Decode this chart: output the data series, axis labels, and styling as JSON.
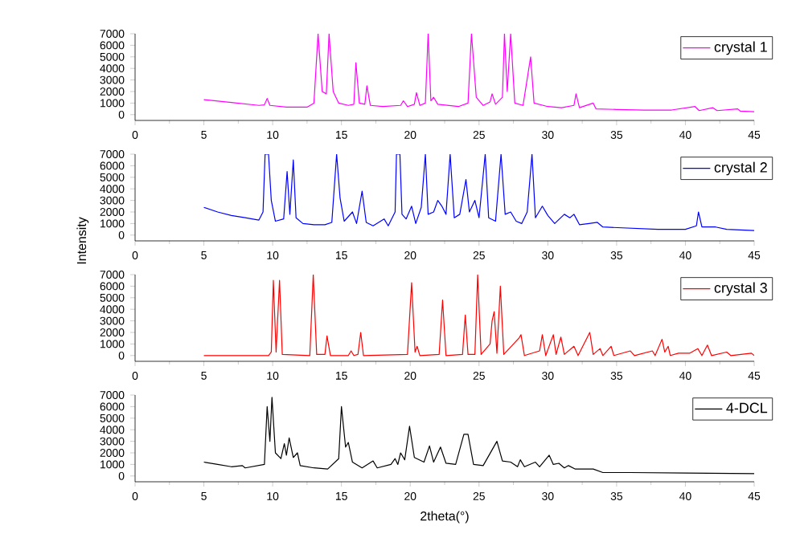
{
  "chart_data": [
    {
      "type": "line",
      "xlim": [
        0,
        45
      ],
      "xticks": [
        0,
        5,
        10,
        15,
        20,
        25,
        30,
        35,
        40,
        45
      ],
      "ylim": [
        -500,
        7000
      ],
      "yticks": [
        0,
        1000,
        2000,
        3000,
        4000,
        5000,
        6000,
        7000
      ],
      "legend": "top right",
      "x": [
        5,
        7,
        9,
        9.4,
        9.6,
        9.8,
        11,
        12.5,
        13,
        13.3,
        13.6,
        13.9,
        14.1,
        14.4,
        14.8,
        15.5,
        15.9,
        16.05,
        16.3,
        16.7,
        16.85,
        17.1,
        18,
        19.3,
        19.5,
        19.8,
        20.3,
        20.45,
        20.7,
        21.1,
        21.3,
        21.5,
        21.7,
        22,
        23.5,
        24.2,
        24.45,
        24.8,
        25.3,
        25.8,
        25.95,
        26.2,
        26.7,
        26.85,
        27.05,
        27.3,
        27.6,
        28.2,
        28.75,
        29,
        30,
        31,
        31.9,
        32.05,
        32.3,
        33.3,
        33.5,
        35,
        37,
        39,
        40.7,
        41,
        42,
        42.3,
        43.8,
        44,
        45
      ],
      "series": [
        {
          "name": "crystal 1",
          "color": "#ff00ff",
          "values": [
            1300,
            1050,
            800,
            850,
            1400,
            800,
            650,
            650,
            1000,
            7000,
            2000,
            1800,
            7000,
            2000,
            1000,
            800,
            900,
            4500,
            1000,
            900,
            2500,
            800,
            700,
            800,
            1200,
            700,
            900,
            1900,
            800,
            1000,
            7000,
            1200,
            1500,
            900,
            700,
            1000,
            7000,
            1500,
            800,
            1100,
            1800,
            900,
            1500,
            7000,
            2000,
            7000,
            1000,
            800,
            5000,
            1000,
            700,
            600,
            800,
            1800,
            600,
            1000,
            500,
            450,
            400,
            400,
            700,
            350,
            600,
            350,
            500,
            300,
            250
          ]
        }
      ]
    },
    {
      "type": "line",
      "xlim": [
        0,
        45
      ],
      "xticks": [
        0,
        5,
        10,
        15,
        20,
        25,
        30,
        35,
        40,
        45
      ],
      "ylim": [
        -500,
        7000
      ],
      "yticks": [
        0,
        1000,
        2000,
        3000,
        4000,
        5000,
        6000,
        7000
      ],
      "legend": "top right",
      "ylabel": "Intensity",
      "x": [
        5,
        6,
        7,
        8,
        9,
        9.3,
        9.45,
        9.7,
        9.9,
        10.2,
        10.8,
        11.05,
        11.25,
        11.5,
        11.7,
        12.2,
        13,
        13.8,
        14.3,
        14.65,
        14.9,
        15.2,
        15.8,
        16.1,
        16.5,
        16.8,
        17.3,
        18.1,
        18.4,
        18.9,
        19.0,
        19.25,
        19.4,
        19.7,
        20.1,
        20.4,
        20.8,
        21.1,
        21.3,
        21.7,
        22,
        22.3,
        22.6,
        22.9,
        23.2,
        23.6,
        24.05,
        24.3,
        24.7,
        25,
        25.45,
        25.7,
        26.2,
        26.6,
        26.9,
        27.3,
        27.7,
        28.1,
        28.5,
        28.85,
        29.1,
        29.6,
        30,
        30.5,
        31.2,
        31.6,
        31.9,
        32.3,
        33,
        33.6,
        34,
        36,
        38,
        40,
        40.8,
        40.95,
        41.2,
        42.2,
        43,
        45
      ],
      "series": [
        {
          "name": "crystal 2",
          "color": "#0000ff",
          "values": [
            2400,
            2000,
            1700,
            1500,
            1300,
            2000,
            7000,
            7000,
            3000,
            1200,
            1400,
            5500,
            1800,
            6500,
            1500,
            1000,
            900,
            900,
            1100,
            7000,
            3200,
            1200,
            2000,
            1000,
            3800,
            1100,
            800,
            1400,
            800,
            2000,
            7000,
            7000,
            1800,
            1400,
            2500,
            1000,
            2400,
            7000,
            1800,
            2000,
            3000,
            2500,
            1800,
            7000,
            1500,
            1800,
            4800,
            2000,
            3000,
            1500,
            7000,
            1500,
            1200,
            7000,
            1800,
            2000,
            1200,
            1000,
            2000,
            7000,
            1500,
            2500,
            1700,
            1000,
            1800,
            1500,
            1800,
            900,
            1000,
            1100,
            700,
            600,
            500,
            500,
            800,
            2000,
            700,
            700,
            500,
            400
          ]
        }
      ]
    },
    {
      "type": "line",
      "xlim": [
        0,
        45
      ],
      "xticks": [
        0,
        5,
        10,
        15,
        20,
        25,
        30,
        35,
        40,
        45
      ],
      "ylim": [
        -500,
        7000
      ],
      "yticks": [
        0,
        1000,
        2000,
        3000,
        4000,
        5000,
        6000,
        7000
      ],
      "legend": "top right",
      "x": [
        5,
        9.7,
        9.9,
        10.05,
        10.25,
        10.5,
        10.7,
        12.7,
        12.95,
        13.2,
        13.8,
        13.95,
        14.2,
        15.5,
        15.7,
        15.9,
        16.2,
        16.4,
        16.6,
        19.8,
        20.1,
        20.35,
        20.5,
        20.7,
        22.1,
        22.35,
        22.6,
        23.8,
        24.0,
        24.2,
        24.7,
        24.9,
        25.15,
        25.8,
        25.95,
        26.1,
        26.3,
        26.55,
        26.8,
        27.9,
        28.05,
        28.3,
        29.4,
        29.6,
        29.85,
        30.4,
        30.6,
        30.95,
        31.2,
        31.9,
        32.2,
        33.05,
        33.3,
        33.8,
        34,
        34.6,
        34.8,
        36,
        36.3,
        37.6,
        37.8,
        38.3,
        38.5,
        38.75,
        38.9,
        39.5,
        40.3,
        40.9,
        41.2,
        41.6,
        41.9,
        43,
        43.3,
        44.8,
        45
      ],
      "series": [
        {
          "name": "crystal 3",
          "color": "#ff0000",
          "values": [
            0,
            0,
            300,
            6500,
            300,
            6500,
            100,
            0,
            7000,
            100,
            100,
            1700,
            0,
            0,
            400,
            0,
            100,
            2000,
            0,
            100,
            6300,
            300,
            800,
            0,
            100,
            4800,
            0,
            100,
            3500,
            100,
            100,
            7000,
            100,
            1000,
            3000,
            3800,
            200,
            6000,
            100,
            1500,
            1800,
            0,
            400,
            1800,
            0,
            1800,
            100,
            1600,
            100,
            800,
            0,
            2000,
            100,
            600,
            0,
            800,
            0,
            400,
            0,
            400,
            0,
            1400,
            300,
            800,
            0,
            200,
            200,
            600,
            0,
            900,
            0,
            300,
            0,
            200,
            0
          ]
        }
      ]
    },
    {
      "type": "line",
      "xlim": [
        0,
        45
      ],
      "xticks": [
        0,
        5,
        10,
        15,
        20,
        25,
        30,
        35,
        40,
        45
      ],
      "ylim": [
        -500,
        7000
      ],
      "yticks": [
        0,
        1000,
        2000,
        3000,
        4000,
        5000,
        6000,
        7000
      ],
      "legend": "top right",
      "xlabel": "2theta(°)",
      "x": [
        5,
        6,
        7,
        7.8,
        8,
        9.4,
        9.6,
        9.8,
        9.95,
        10.2,
        10.6,
        10.85,
        11.0,
        11.2,
        11.5,
        11.8,
        12,
        13,
        14,
        14.8,
        15.0,
        15.3,
        15.5,
        15.8,
        16.5,
        17.3,
        17.6,
        18.6,
        18.9,
        19.1,
        19.3,
        19.6,
        19.95,
        20.3,
        21,
        21.4,
        21.7,
        22.2,
        22.6,
        23.3,
        23.9,
        24.2,
        24.6,
        25.3,
        26.3,
        26.7,
        27.3,
        27.8,
        28,
        28.3,
        29.1,
        29.4,
        30.1,
        30.4,
        30.8,
        31.2,
        31.5,
        32,
        33.3,
        34,
        36,
        40,
        45
      ],
      "series": [
        {
          "name": "4-DCL",
          "color": "#000000",
          "values": [
            1200,
            1000,
            800,
            900,
            700,
            1000,
            6000,
            3000,
            6800,
            2000,
            1500,
            2800,
            1800,
            3300,
            1600,
            2000,
            900,
            700,
            600,
            1500,
            6000,
            2500,
            2900,
            1200,
            700,
            1300,
            700,
            1000,
            1500,
            1000,
            2000,
            1400,
            4300,
            1600,
            1200,
            2600,
            1200,
            2500,
            1100,
            1000,
            3600,
            3600,
            1000,
            900,
            3000,
            1300,
            1200,
            800,
            1400,
            800,
            1200,
            800,
            1800,
            1000,
            1100,
            700,
            900,
            600,
            600,
            300,
            300,
            250,
            200
          ]
        }
      ]
    }
  ]
}
